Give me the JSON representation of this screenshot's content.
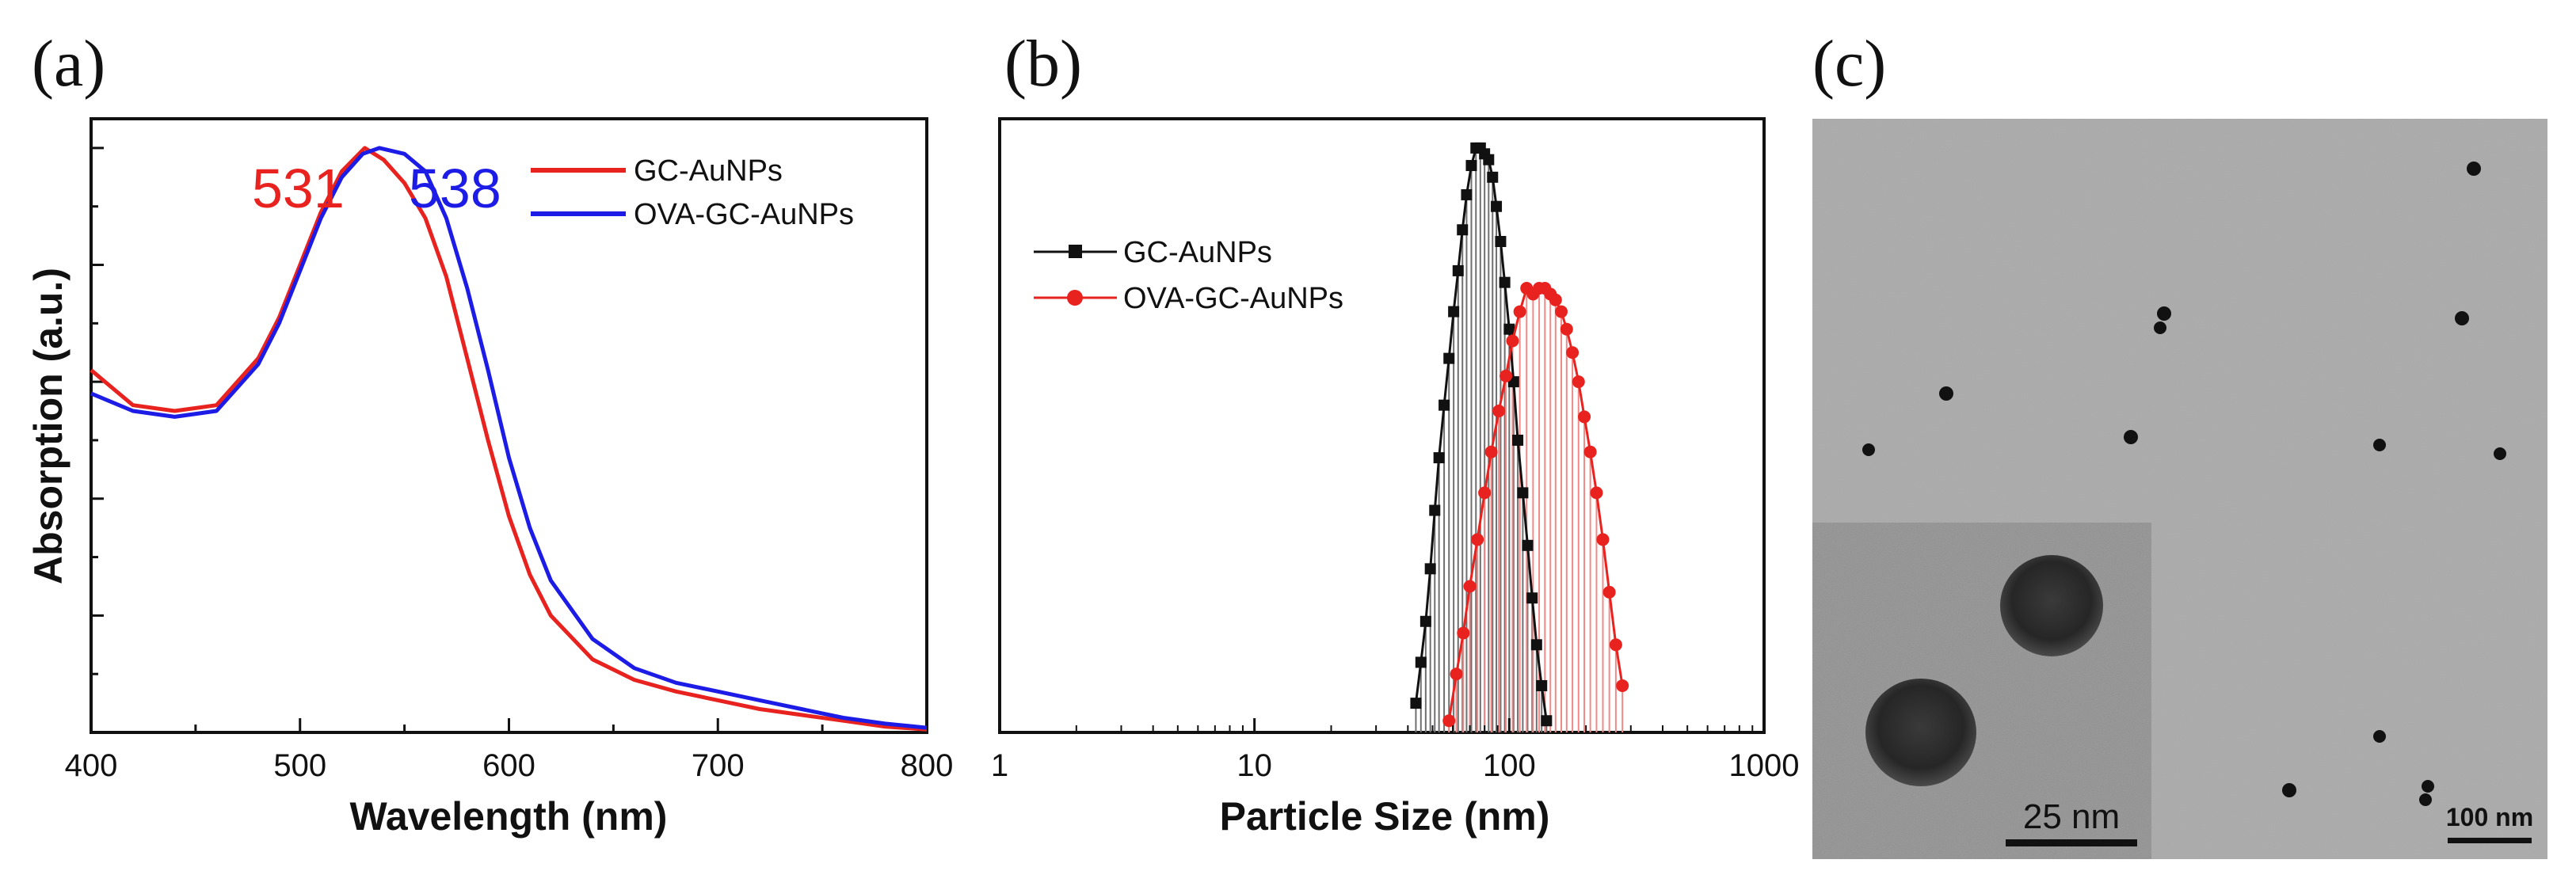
{
  "figure": {
    "panel_labels": [
      "(a)",
      "(b)",
      "(c)"
    ]
  },
  "colors": {
    "red": "#e8231f",
    "blue": "#1c1ce6",
    "black": "#111111",
    "tem_bg": "#a9a9a9",
    "inset_bg": "#8e8e8e"
  },
  "chart_data": [
    {
      "type": "line",
      "panel": "(a)",
      "xlabel": "Wavelength (nm)",
      "ylabel": "Absorption (a.u.)",
      "xlim": [
        400,
        800
      ],
      "ylim": [
        0,
        1.05
      ],
      "x_ticks": [
        400,
        500,
        600,
        700,
        800
      ],
      "peak_labels": [
        {
          "text": "531",
          "series": "GC-AuNPs"
        },
        {
          "text": "538",
          "series": "OVA-GC-AuNPs"
        }
      ],
      "legend_position": "top-right",
      "series": [
        {
          "name": "GC-AuNPs",
          "color": "#e8231f",
          "x": [
            400,
            420,
            440,
            460,
            480,
            490,
            500,
            510,
            520,
            531,
            540,
            550,
            560,
            570,
            580,
            590,
            600,
            610,
            620,
            640,
            660,
            680,
            700,
            720,
            740,
            760,
            780,
            800
          ],
          "y": [
            0.62,
            0.56,
            0.55,
            0.56,
            0.64,
            0.71,
            0.8,
            0.89,
            0.96,
            1.0,
            0.98,
            0.94,
            0.88,
            0.78,
            0.64,
            0.5,
            0.37,
            0.27,
            0.2,
            0.125,
            0.09,
            0.07,
            0.055,
            0.04,
            0.03,
            0.02,
            0.01,
            0.005
          ]
        },
        {
          "name": "OVA-GC-AuNPs",
          "color": "#1c1ce6",
          "x": [
            400,
            420,
            440,
            460,
            480,
            490,
            500,
            510,
            520,
            530,
            538,
            550,
            560,
            570,
            580,
            590,
            600,
            610,
            620,
            640,
            660,
            680,
            700,
            720,
            740,
            760,
            780,
            800
          ],
          "y": [
            0.58,
            0.55,
            0.54,
            0.55,
            0.63,
            0.7,
            0.79,
            0.88,
            0.95,
            0.99,
            1.0,
            0.99,
            0.96,
            0.88,
            0.76,
            0.62,
            0.47,
            0.35,
            0.26,
            0.16,
            0.11,
            0.085,
            0.07,
            0.055,
            0.04,
            0.025,
            0.015,
            0.008
          ]
        }
      ]
    },
    {
      "type": "line",
      "subtype": "histogram-log",
      "panel": "(b)",
      "xlabel": "Particle Size (nm)",
      "ylabel": "",
      "xscale": "log",
      "xlim": [
        1,
        1000
      ],
      "ylim": [
        0,
        1.05
      ],
      "x_ticks": [
        1,
        10,
        100,
        1000
      ],
      "x_tick_labels": [
        "1",
        "10",
        "100",
        "1000"
      ],
      "legend_position": "left",
      "series": [
        {
          "name": "GC-AuNPs",
          "color": "#111111",
          "marker": "square",
          "x": [
            43,
            45,
            47,
            49,
            51,
            53,
            55.5,
            58,
            60.5,
            63,
            65.5,
            68,
            71,
            74,
            77,
            80,
            83,
            86,
            89,
            92.5,
            96,
            100,
            104,
            108,
            113,
            118,
            123,
            128,
            134,
            140
          ],
          "y": [
            0.05,
            0.12,
            0.19,
            0.28,
            0.38,
            0.47,
            0.56,
            0.64,
            0.72,
            0.79,
            0.86,
            0.92,
            0.97,
            1.0,
            1.0,
            0.99,
            0.98,
            0.95,
            0.9,
            0.84,
            0.77,
            0.69,
            0.6,
            0.5,
            0.41,
            0.32,
            0.23,
            0.15,
            0.08,
            0.02
          ]
        },
        {
          "name": "OVA-GC-AuNPs",
          "color": "#e8231f",
          "marker": "circle",
          "x": [
            58,
            62,
            66,
            70,
            75,
            80,
            85,
            91,
            97,
            103,
            110,
            117,
            124,
            131,
            138,
            145,
            152,
            160,
            168,
            177,
            187,
            197,
            208,
            220,
            233,
            247,
            262,
            278
          ],
          "y": [
            0.02,
            0.1,
            0.17,
            0.25,
            0.33,
            0.41,
            0.48,
            0.55,
            0.61,
            0.67,
            0.72,
            0.76,
            0.75,
            0.76,
            0.76,
            0.75,
            0.74,
            0.72,
            0.69,
            0.65,
            0.6,
            0.54,
            0.48,
            0.41,
            0.33,
            0.24,
            0.15,
            0.08
          ]
        }
      ]
    }
  ],
  "tem_panel": {
    "panel": "(c)",
    "scale_bar_label": "100 nm",
    "inset_scale_bar_label": "25 nm"
  }
}
